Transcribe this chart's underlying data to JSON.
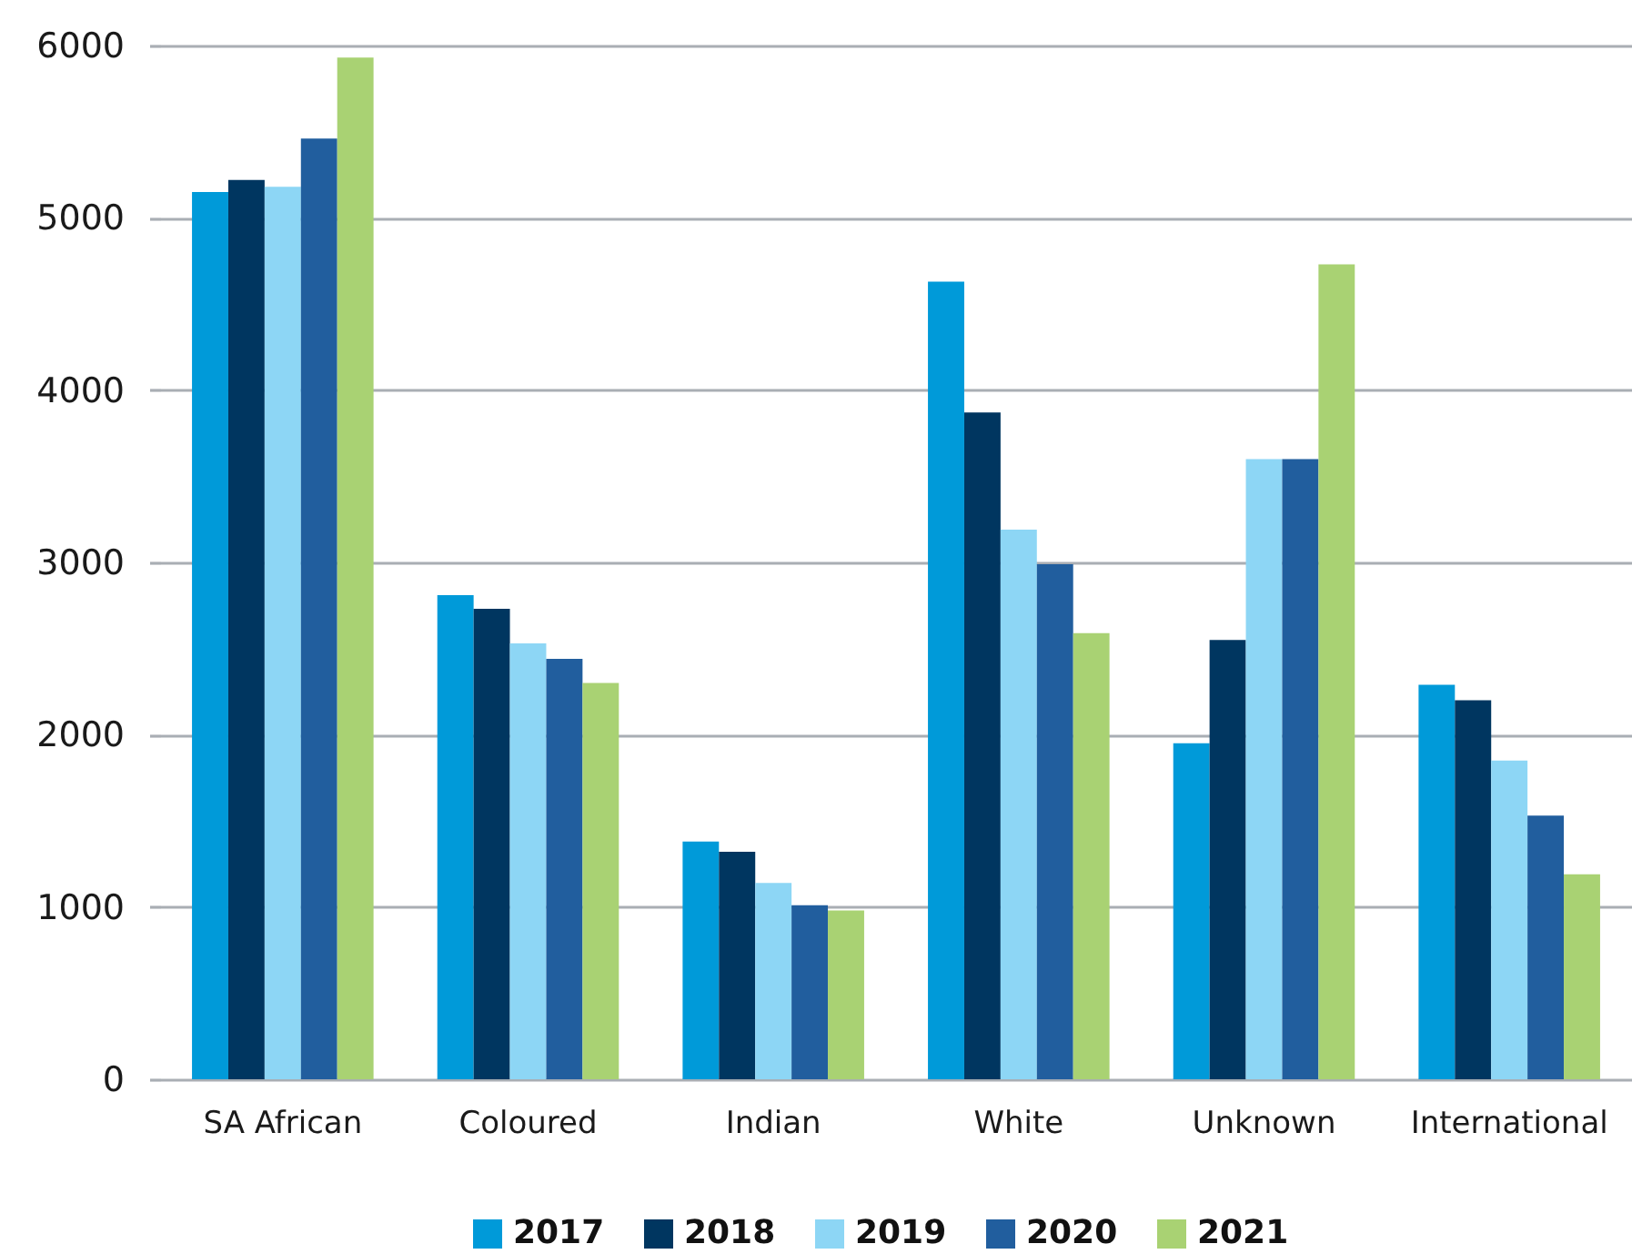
{
  "chart_data": {
    "type": "bar",
    "categories": [
      "SA African",
      "Coloured",
      "Indian",
      "White",
      "Unknown",
      "International"
    ],
    "series": [
      {
        "name": "2017",
        "color": "#009ad9",
        "values": [
          5150,
          2810,
          1380,
          4630,
          1950,
          2290
        ]
      },
      {
        "name": "2018",
        "color": "#003660",
        "values": [
          5220,
          2730,
          1320,
          3870,
          2550,
          2200
        ]
      },
      {
        "name": "2019",
        "color": "#8dd6f5",
        "values": [
          5180,
          2530,
          1140,
          3190,
          3600,
          1850
        ]
      },
      {
        "name": "2020",
        "color": "#215e9e",
        "values": [
          5460,
          2440,
          1010,
          2990,
          3600,
          1530
        ]
      },
      {
        "name": "2021",
        "color": "#a9d273",
        "values": [
          5930,
          2300,
          980,
          2590,
          4730,
          1190
        ]
      }
    ],
    "ylim": [
      0,
      6000
    ],
    "yticks": [
      0,
      1000,
      2000,
      3000,
      4000,
      5000,
      6000
    ],
    "grid": "y",
    "legend": "bottom"
  }
}
